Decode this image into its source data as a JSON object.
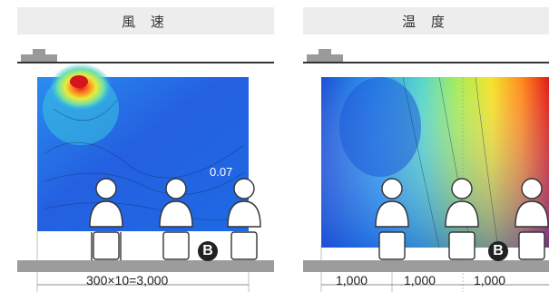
{
  "panels": {
    "wind": {
      "title": "風 速",
      "value_label": "0.07",
      "dimension": "300×10=3,000",
      "badge": "B"
    },
    "temp": {
      "title": "温 度",
      "dimensions": [
        "1,000",
        "1,000",
        "1,000"
      ],
      "badge": "B"
    }
  },
  "colors": {
    "header_bg": "#ededed",
    "floor": "#9c9c9c",
    "wind_gradient": [
      "#1a4fd6",
      "#2a8df0",
      "#35c0e8",
      "#6fe0a8",
      "#e8ec3a",
      "#ff7a1e",
      "#d6141e"
    ],
    "temp_gradient": [
      "#1a4fd6",
      "#2fa0f0",
      "#5ad8c8",
      "#a8ec5a",
      "#f5e22a",
      "#ff8a1e",
      "#e01a16"
    ]
  },
  "icons": [
    "person-seated-icon",
    "vent-icon"
  ]
}
